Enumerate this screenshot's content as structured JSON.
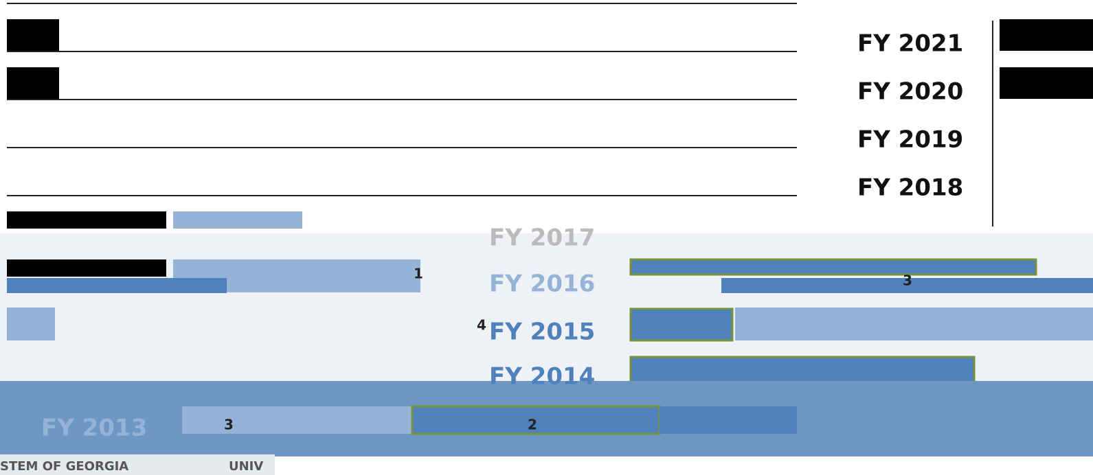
{
  "labels": [
    "FY 2021",
    "FY 2020",
    "FY 2019",
    "FY 2018",
    "FY 2017",
    "FY 2016",
    "FY 2015",
    "FY 2014",
    "FY 2013"
  ],
  "data_labels": [
    3,
    2,
    3,
    1,
    4
  ],
  "footer": [
    "STEM OF GEORGIA",
    "UNIV"
  ]
}
